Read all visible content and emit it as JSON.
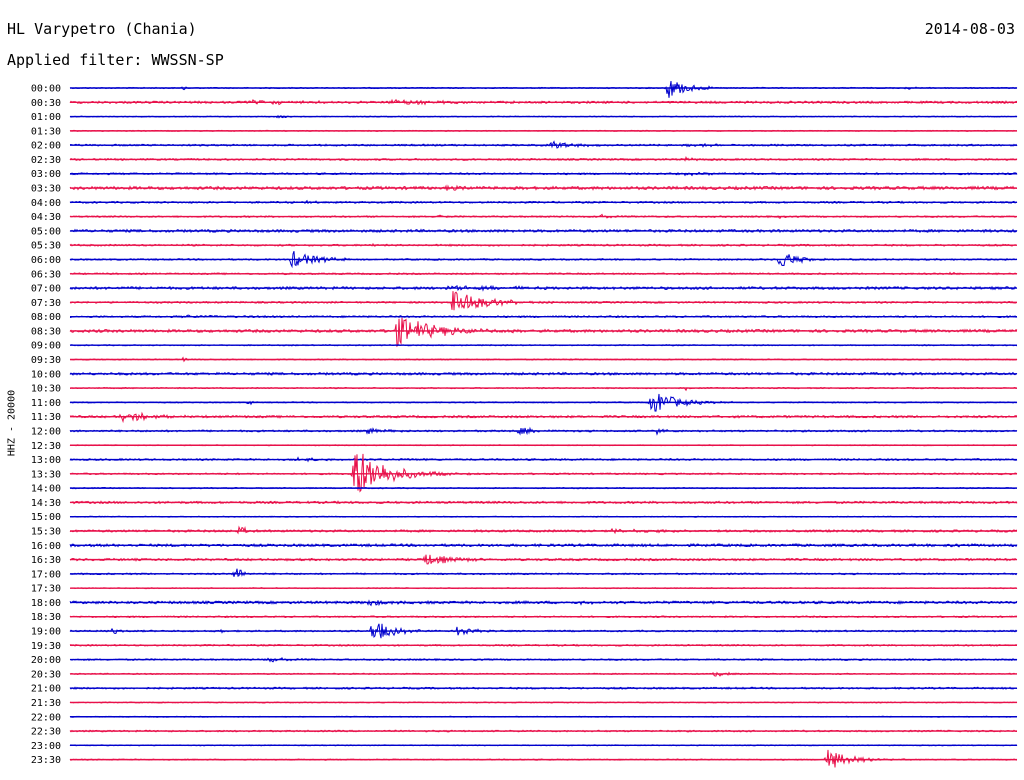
{
  "header": {
    "station": "HL Varypetro (Chania)",
    "date": "2014-08-03",
    "filter": "Applied filter: WWSSN-SP"
  },
  "channel_label": "HHZ - 20000",
  "colors": {
    "even_row": "#0000cc",
    "odd_row": "#e8104a"
  },
  "chart_data": {
    "type": "line",
    "title": "HL Varypetro (Chania)",
    "subtitle": "Applied filter: WWSSN-SP",
    "ylabel": "HHZ - 20000",
    "rows": [
      {
        "label": "00:00",
        "noise": 0.6,
        "events": [
          {
            "x": 0.632,
            "amp": 11,
            "len": 0.03
          },
          {
            "x": 0.885,
            "amp": 2,
            "len": 0.01
          },
          {
            "x": 0.12,
            "amp": 1.5,
            "len": 0.005
          }
        ]
      },
      {
        "label": "00:30",
        "noise": 1.1,
        "events": [
          {
            "x": 0.19,
            "amp": 2.5,
            "len": 0.07
          },
          {
            "x": 0.34,
            "amp": 2.5,
            "len": 0.07
          }
        ]
      },
      {
        "label": "01:00",
        "noise": 0.5,
        "events": [
          {
            "x": 0.22,
            "amp": 1.2,
            "len": 0.02
          }
        ]
      },
      {
        "label": "01:30",
        "noise": 0.5,
        "events": []
      },
      {
        "label": "02:00",
        "noise": 0.9,
        "events": [
          {
            "x": 0.51,
            "amp": 5,
            "len": 0.03
          },
          {
            "x": 0.65,
            "amp": 1.5,
            "len": 0.05
          }
        ]
      },
      {
        "label": "02:30",
        "noise": 0.9,
        "events": [
          {
            "x": 0.65,
            "amp": 2,
            "len": 0.015
          },
          {
            "x": 0.48,
            "amp": 1.5,
            "len": 0.005
          }
        ]
      },
      {
        "label": "03:00",
        "noise": 0.9,
        "events": [
          {
            "x": 0.65,
            "amp": 1.5,
            "len": 0.04
          }
        ]
      },
      {
        "label": "03:30",
        "noise": 1.5,
        "events": [
          {
            "x": 0.39,
            "amp": 2,
            "len": 0.04
          }
        ]
      },
      {
        "label": "04:00",
        "noise": 0.9,
        "events": [
          {
            "x": 0.24,
            "amp": 1.5,
            "len": 0.04
          }
        ]
      },
      {
        "label": "04:30",
        "noise": 0.8,
        "events": [
          {
            "x": 0.39,
            "amp": 2,
            "len": 0.005
          },
          {
            "x": 0.56,
            "amp": 2,
            "len": 0.02
          },
          {
            "x": 0.75,
            "amp": 1.5,
            "len": 0.005
          }
        ]
      },
      {
        "label": "05:00",
        "noise": 1.3,
        "events": []
      },
      {
        "label": "05:30",
        "noise": 0.9,
        "events": [
          {
            "x": 0.32,
            "amp": 2,
            "len": 0.005
          }
        ]
      },
      {
        "label": "06:00",
        "noise": 0.8,
        "events": [
          {
            "x": 0.235,
            "amp": 9,
            "len": 0.04
          },
          {
            "x": 0.75,
            "amp": 10,
            "len": 0.025
          }
        ]
      },
      {
        "label": "06:30",
        "noise": 0.8,
        "events": [
          {
            "x": 0.93,
            "amp": 2,
            "len": 0.005
          }
        ]
      },
      {
        "label": "07:00",
        "noise": 1.3,
        "events": [
          {
            "x": 0.4,
            "amp": 2,
            "len": 0.1
          }
        ]
      },
      {
        "label": "07:30",
        "noise": 0.9,
        "events": [
          {
            "x": 0.405,
            "amp": 15,
            "len": 0.045
          }
        ]
      },
      {
        "label": "08:00",
        "noise": 0.9,
        "events": [
          {
            "x": 0.12,
            "amp": 1.5,
            "len": 0.05
          }
        ]
      },
      {
        "label": "08:30",
        "noise": 1.4,
        "events": [
          {
            "x": 0.345,
            "amp": 16,
            "len": 0.06
          }
        ]
      },
      {
        "label": "09:00",
        "noise": 0.6,
        "events": []
      },
      {
        "label": "09:30",
        "noise": 0.6,
        "events": [
          {
            "x": 0.12,
            "amp": 3,
            "len": 0.005
          },
          {
            "x": 0.53,
            "amp": 1.2,
            "len": 0.005
          }
        ]
      },
      {
        "label": "10:00",
        "noise": 1.2,
        "events": []
      },
      {
        "label": "10:30",
        "noise": 0.6,
        "events": [
          {
            "x": 0.65,
            "amp": 2,
            "len": 0.01
          }
        ]
      },
      {
        "label": "11:00",
        "noise": 0.6,
        "events": [
          {
            "x": 0.615,
            "amp": 12,
            "len": 0.04
          },
          {
            "x": 0.19,
            "amp": 2,
            "len": 0.005
          }
        ]
      },
      {
        "label": "11:30",
        "noise": 1.1,
        "events": [
          {
            "x": 0.055,
            "amp": 5,
            "len": 0.05
          }
        ]
      },
      {
        "label": "12:00",
        "noise": 0.9,
        "events": [
          {
            "x": 0.315,
            "amp": 3,
            "len": 0.025
          },
          {
            "x": 0.475,
            "amp": 4,
            "len": 0.025
          },
          {
            "x": 0.62,
            "amp": 3,
            "len": 0.01
          }
        ]
      },
      {
        "label": "12:30",
        "noise": 0.5,
        "events": []
      },
      {
        "label": "13:00",
        "noise": 0.9,
        "events": [
          {
            "x": 0.24,
            "amp": 1.5,
            "len": 0.05
          }
        ]
      },
      {
        "label": "13:30",
        "noise": 0.8,
        "events": [
          {
            "x": 0.3,
            "amp": 28,
            "len": 0.05
          }
        ]
      },
      {
        "label": "14:00",
        "noise": 0.6,
        "events": []
      },
      {
        "label": "14:30",
        "noise": 1.1,
        "events": []
      },
      {
        "label": "15:00",
        "noise": 0.5,
        "events": []
      },
      {
        "label": "15:30",
        "noise": 1.1,
        "events": [
          {
            "x": 0.18,
            "amp": 5,
            "len": 0.01
          },
          {
            "x": 0.56,
            "amp": 1.5,
            "len": 0.1
          }
        ]
      },
      {
        "label": "16:00",
        "noise": 1.3,
        "events": [
          {
            "x": 0.93,
            "amp": 1.5,
            "len": 0.02
          }
        ]
      },
      {
        "label": "16:30",
        "noise": 1.1,
        "events": [
          {
            "x": 0.375,
            "amp": 7,
            "len": 0.035
          }
        ]
      },
      {
        "label": "17:00",
        "noise": 0.8,
        "events": [
          {
            "x": 0.175,
            "amp": 9,
            "len": 0.01
          },
          {
            "x": 0.54,
            "amp": 1.5,
            "len": 0.005
          }
        ]
      },
      {
        "label": "17:30",
        "noise": 0.5,
        "events": []
      },
      {
        "label": "18:00",
        "noise": 1.3,
        "events": [
          {
            "x": 0.315,
            "amp": 3,
            "len": 0.03
          },
          {
            "x": 0.54,
            "amp": 2,
            "len": 0.02
          }
        ]
      },
      {
        "label": "18:30",
        "noise": 0.8,
        "events": []
      },
      {
        "label": "19:00",
        "noise": 0.8,
        "events": [
          {
            "x": 0.32,
            "amp": 12,
            "len": 0.03
          },
          {
            "x": 0.41,
            "amp": 6,
            "len": 0.02
          },
          {
            "x": 0.045,
            "amp": 3,
            "len": 0.01
          },
          {
            "x": 0.16,
            "amp": 2,
            "len": 0.005
          }
        ]
      },
      {
        "label": "19:30",
        "noise": 0.8,
        "events": []
      },
      {
        "label": "20:00",
        "noise": 0.8,
        "events": [
          {
            "x": 0.21,
            "amp": 2.5,
            "len": 0.03
          }
        ]
      },
      {
        "label": "20:30",
        "noise": 0.6,
        "events": [
          {
            "x": 0.68,
            "amp": 2.5,
            "len": 0.03
          }
        ]
      },
      {
        "label": "21:00",
        "noise": 0.9,
        "events": []
      },
      {
        "label": "21:30",
        "noise": 0.5,
        "events": []
      },
      {
        "label": "22:00",
        "noise": 0.5,
        "events": []
      },
      {
        "label": "22:30",
        "noise": 0.8,
        "events": []
      },
      {
        "label": "23:00",
        "noise": 0.5,
        "events": []
      },
      {
        "label": "23:30",
        "noise": 0.6,
        "events": [
          {
            "x": 0.8,
            "amp": 11,
            "len": 0.035
          }
        ]
      }
    ]
  }
}
